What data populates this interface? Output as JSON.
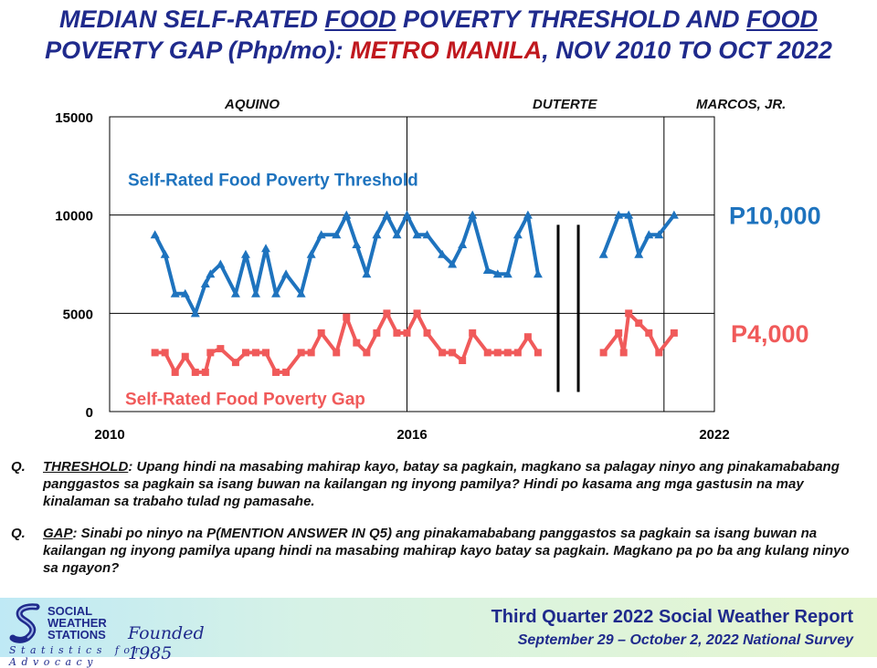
{
  "title": {
    "part1": "MEDIAN SELF-RATED ",
    "food1": "FOOD",
    "part2": " POVERTY THRESHOLD AND ",
    "food2": "FOOD",
    "part3": "POVERTY GAP (Php/mo): ",
    "place": "METRO MANILA",
    "part4": ", NOV 2010 TO OCT 2022"
  },
  "eras": [
    "AQUINO",
    "DUTERTE",
    "MARCOS, JR."
  ],
  "chart_data": {
    "type": "line",
    "x_labels": [
      "2010",
      "2016",
      "2022"
    ],
    "y_ticks": [
      "15000",
      "10000",
      "5000",
      "0"
    ],
    "ylim": [
      0,
      15000
    ],
    "grid": true,
    "series": [
      {
        "name": "Self-Rated Food Poverty Threshold",
        "color": "#1e73be",
        "marker": "triangle",
        "end_label": "P10,000",
        "segments": [
          [
            [
              2010.9,
              9000
            ],
            [
              2011.1,
              8000
            ],
            [
              2011.3,
              6000
            ],
            [
              2011.5,
              6000
            ],
            [
              2011.7,
              5000
            ],
            [
              2011.9,
              6500
            ],
            [
              2012.0,
              7000
            ],
            [
              2012.2,
              7500
            ],
            [
              2012.5,
              6000
            ],
            [
              2012.7,
              8000
            ],
            [
              2012.9,
              6000
            ],
            [
              2013.1,
              8300
            ],
            [
              2013.3,
              6000
            ],
            [
              2013.5,
              7000
            ],
            [
              2013.8,
              6000
            ],
            [
              2014.0,
              8000
            ],
            [
              2014.2,
              9000
            ],
            [
              2014.5,
              9000
            ],
            [
              2014.7,
              10000
            ],
            [
              2014.9,
              8500
            ],
            [
              2015.1,
              7000
            ],
            [
              2015.3,
              9000
            ],
            [
              2015.5,
              10000
            ],
            [
              2015.7,
              9000
            ],
            [
              2015.9,
              10000
            ],
            [
              2016.1,
              9000
            ],
            [
              2016.3,
              9000
            ],
            [
              2016.6,
              8000
            ],
            [
              2016.8,
              7500
            ],
            [
              2017.0,
              8500
            ],
            [
              2017.2,
              10000
            ],
            [
              2017.5,
              7200
            ],
            [
              2017.7,
              7000
            ],
            [
              2017.9,
              7000
            ],
            [
              2018.1,
              9000
            ],
            [
              2018.3,
              10000
            ],
            [
              2018.5,
              7000
            ]
          ],
          [
            [
              2019.8,
              8000
            ],
            [
              2020.1,
              10000
            ],
            [
              2020.3,
              10000
            ],
            [
              2020.5,
              8000
            ],
            [
              2020.7,
              9000
            ],
            [
              2020.9,
              9000
            ],
            [
              2021.2,
              10000
            ]
          ]
        ]
      },
      {
        "name": "Self-Rated Food Poverty Gap",
        "color": "#f05a5a",
        "marker": "square",
        "end_label": "P4,000",
        "segments": [
          [
            [
              2010.9,
              3000
            ],
            [
              2011.1,
              3000
            ],
            [
              2011.3,
              2000
            ],
            [
              2011.5,
              2800
            ],
            [
              2011.7,
              2000
            ],
            [
              2011.9,
              2000
            ],
            [
              2012.0,
              3000
            ],
            [
              2012.2,
              3200
            ],
            [
              2012.5,
              2500
            ],
            [
              2012.7,
              3000
            ],
            [
              2012.9,
              3000
            ],
            [
              2013.1,
              3000
            ],
            [
              2013.3,
              2000
            ],
            [
              2013.5,
              2000
            ],
            [
              2013.8,
              3000
            ],
            [
              2014.0,
              3000
            ],
            [
              2014.2,
              4000
            ],
            [
              2014.5,
              3000
            ],
            [
              2014.7,
              4800
            ],
            [
              2014.9,
              3500
            ],
            [
              2015.1,
              3000
            ],
            [
              2015.3,
              4000
            ],
            [
              2015.5,
              5000
            ],
            [
              2015.7,
              4000
            ],
            [
              2015.9,
              4000
            ],
            [
              2016.1,
              5000
            ],
            [
              2016.3,
              4000
            ],
            [
              2016.6,
              3000
            ],
            [
              2016.8,
              3000
            ],
            [
              2017.0,
              2600
            ],
            [
              2017.2,
              4000
            ],
            [
              2017.5,
              3000
            ],
            [
              2017.7,
              3000
            ],
            [
              2017.9,
              3000
            ],
            [
              2018.1,
              3000
            ],
            [
              2018.3,
              3800
            ],
            [
              2018.5,
              3000
            ]
          ],
          [
            [
              2019.8,
              3000
            ],
            [
              2020.1,
              4000
            ],
            [
              2020.2,
              3000
            ],
            [
              2020.3,
              5000
            ],
            [
              2020.5,
              4500
            ],
            [
              2020.7,
              4000
            ],
            [
              2020.9,
              3000
            ],
            [
              2021.2,
              4000
            ]
          ]
        ]
      }
    ],
    "era_dividers": [
      2015.9,
      2021.0
    ],
    "gap_markers": [
      2018.9,
      2019.3
    ]
  },
  "questions": [
    {
      "label": "Q.",
      "key": "THRESHOLD",
      "text": ": Upang hindi na masabing mahirap kayo, batay sa pagkain, magkano sa palagay ninyo ang pinakamababang panggastos sa pagkain sa isang buwan na kailangan ng inyong pamilya? Hindi po kasama ang mga gastusin na may kinalaman sa trabaho tulad ng pamasahe."
    },
    {
      "label": "Q.",
      "key": "GAP",
      "text": ": Sinabi po ninyo na P(MENTION ANSWER IN Q5) ang pinakamababang panggastos sa pagkain sa isang buwan na kailangan ng inyong pamilya upang hindi na masabing mahirap kayo batay sa pagkain. Magkano pa po ba ang kulang ninyo sa ngayon?"
    }
  ],
  "footer": {
    "org_line1": "SOCIAL",
    "org_line2": "WEATHER",
    "org_line3": "STATIONS",
    "founded": "Founded 1985",
    "tagline": "Statistics for Advocacy",
    "report": "Third Quarter 2022 Social Weather Report",
    "survey": "September 29 – October 2, 2022 National Survey"
  }
}
